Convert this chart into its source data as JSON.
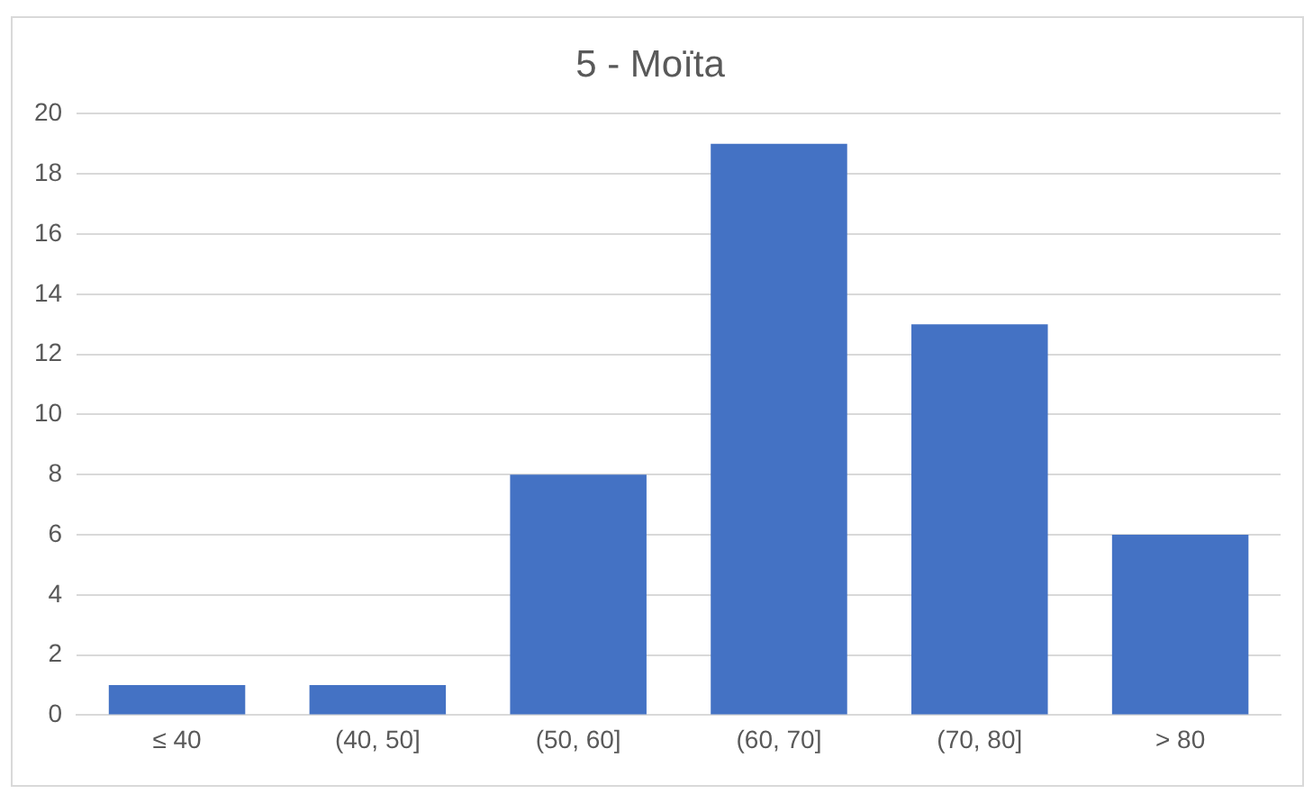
{
  "chart_data": {
    "type": "bar",
    "title": "5 - Moïta",
    "categories": [
      "≤ 40",
      "(40, 50]",
      "(50, 60]",
      "(60, 70]",
      "(70, 80]",
      "> 80"
    ],
    "values": [
      1,
      1,
      8,
      19,
      13,
      6
    ],
    "color": "#4472c4",
    "ylim": [
      0,
      20
    ],
    "yticks": [
      0,
      2,
      4,
      6,
      8,
      10,
      12,
      14,
      16,
      18,
      20
    ],
    "grid": "y"
  }
}
